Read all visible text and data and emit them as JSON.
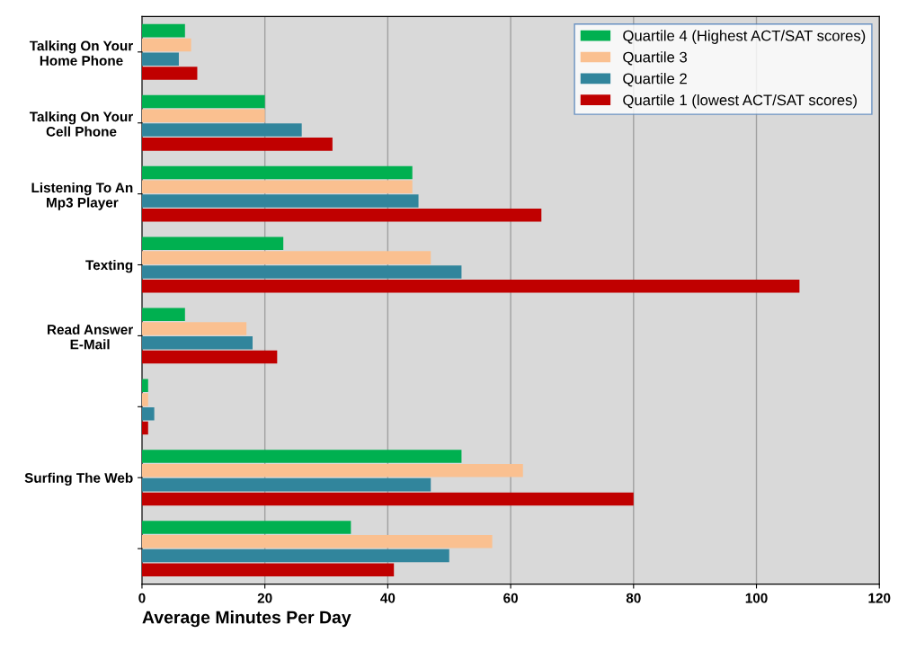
{
  "chart_data": {
    "type": "bar",
    "orientation": "horizontal",
    "xlabel": "Average Minutes Per Day",
    "categories": [
      "Talking On Your Home Phone",
      "Talking On Your Cell Phone",
      "Listening To An Mp3 Player",
      "Texting",
      "Read Answer E-Mail",
      null,
      "Surfing The Web",
      null
    ],
    "series": [
      {
        "name": "Quartile 4 (Highest ACT/SAT scores)",
        "color": "#00b050",
        "values": [
          7,
          20,
          44,
          23,
          7,
          1,
          52,
          34
        ]
      },
      {
        "name": "Quartile 3",
        "color": "#fac090",
        "values": [
          8,
          20,
          44,
          47,
          17,
          1,
          62,
          57
        ]
      },
      {
        "name": "Quartile 2",
        "color": "#31859c",
        "values": [
          6,
          26,
          45,
          52,
          18,
          2,
          47,
          50
        ]
      },
      {
        "name": "Quartile 1 (lowest ACT/SAT scores)",
        "color": "#c00000",
        "values": [
          9,
          31,
          65,
          107,
          22,
          1,
          80,
          41
        ]
      }
    ],
    "xlim": [
      0,
      120
    ],
    "xticks": [
      0,
      20,
      40,
      60,
      80,
      100,
      120
    ],
    "grid": "x",
    "legend": "top right"
  }
}
